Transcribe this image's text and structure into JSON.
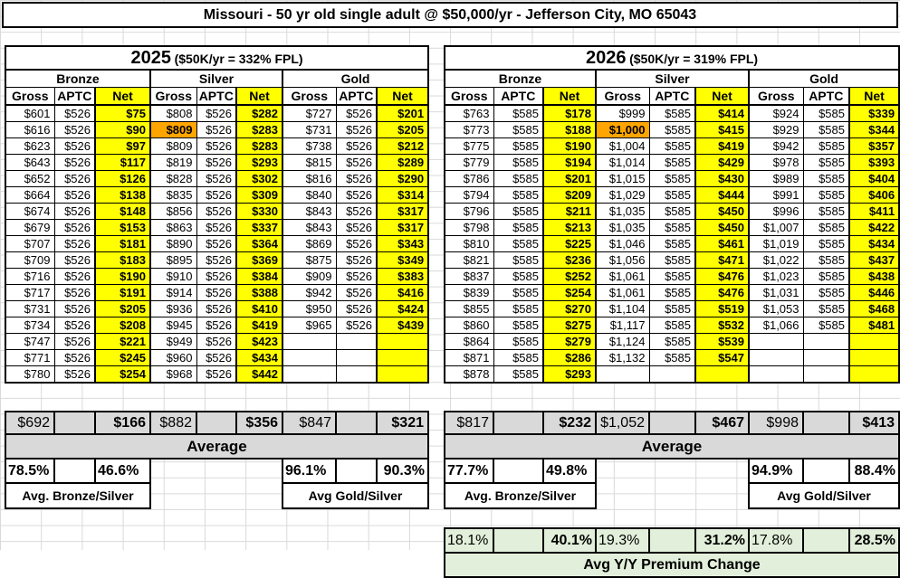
{
  "title": "Missouri - 50 yr old single adult @ $50,000/yr - Jefferson City, MO 65043",
  "column_headers": [
    "Gross",
    "APTC",
    "Net"
  ],
  "tier_headers": [
    "Bronze",
    "Silver",
    "Gold"
  ],
  "summary": {
    "average_label": "Average",
    "bronze_silver_label": "Avg. Bronze/Silver",
    "gold_silver_label": "Avg Gold/Silver"
  },
  "yoy_label": "Avg Y/Y Premium Change",
  "colors": {
    "net_column_highlight": "#FFFF00",
    "benchmark_highlight": "#FFA500",
    "summary_background": "#D9D9D9",
    "yoy_background": "#E2EFDA"
  },
  "years": [
    {
      "year": "2025",
      "fpl_note": "($50K/yr = 332% FPL)",
      "rows": [
        [
          "$601",
          "$526",
          "$75",
          "$808",
          "$526",
          "$282",
          "$727",
          "$526",
          "$201"
        ],
        [
          "$616",
          "$526",
          "$90",
          "$809",
          "$526",
          "$283",
          "$731",
          "$526",
          "$205"
        ],
        [
          "$623",
          "$526",
          "$97",
          "$809",
          "$526",
          "$283",
          "$738",
          "$526",
          "$212"
        ],
        [
          "$643",
          "$526",
          "$117",
          "$819",
          "$526",
          "$293",
          "$815",
          "$526",
          "$289"
        ],
        [
          "$652",
          "$526",
          "$126",
          "$828",
          "$526",
          "$302",
          "$816",
          "$526",
          "$290"
        ],
        [
          "$664",
          "$526",
          "$138",
          "$835",
          "$526",
          "$309",
          "$840",
          "$526",
          "$314"
        ],
        [
          "$674",
          "$526",
          "$148",
          "$856",
          "$526",
          "$330",
          "$843",
          "$526",
          "$317"
        ],
        [
          "$679",
          "$526",
          "$153",
          "$863",
          "$526",
          "$337",
          "$843",
          "$526",
          "$317"
        ],
        [
          "$707",
          "$526",
          "$181",
          "$890",
          "$526",
          "$364",
          "$869",
          "$526",
          "$343"
        ],
        [
          "$709",
          "$526",
          "$183",
          "$895",
          "$526",
          "$369",
          "$875",
          "$526",
          "$349"
        ],
        [
          "$716",
          "$526",
          "$190",
          "$910",
          "$526",
          "$384",
          "$909",
          "$526",
          "$383"
        ],
        [
          "$717",
          "$526",
          "$191",
          "$914",
          "$526",
          "$388",
          "$942",
          "$526",
          "$416"
        ],
        [
          "$731",
          "$526",
          "$205",
          "$936",
          "$526",
          "$410",
          "$950",
          "$526",
          "$424"
        ],
        [
          "$734",
          "$526",
          "$208",
          "$945",
          "$526",
          "$419",
          "$965",
          "$526",
          "$439"
        ],
        [
          "$747",
          "$526",
          "$221",
          "$949",
          "$526",
          "$423",
          "",
          "",
          ""
        ],
        [
          "$771",
          "$526",
          "$245",
          "$960",
          "$526",
          "$434",
          "",
          "",
          ""
        ],
        [
          "$780",
          "$526",
          "$254",
          "$968",
          "$526",
          "$442",
          "",
          "",
          ""
        ]
      ],
      "benchmark_cell": {
        "row": 1,
        "col": 3
      },
      "averages": [
        "$692",
        "",
        "$166",
        "$882",
        "",
        "$356",
        "$847",
        "",
        "$321"
      ],
      "percents": [
        "78.5%",
        "",
        "46.6%",
        "",
        "",
        "",
        "96.1%",
        "",
        "90.3%"
      ]
    },
    {
      "year": "2026",
      "fpl_note": "($50K/yr = 319% FPL)",
      "rows": [
        [
          "$763",
          "$585",
          "$178",
          "$999",
          "$585",
          "$414",
          "$924",
          "$585",
          "$339"
        ],
        [
          "$773",
          "$585",
          "$188",
          "$1,000",
          "$585",
          "$415",
          "$929",
          "$585",
          "$344"
        ],
        [
          "$775",
          "$585",
          "$190",
          "$1,004",
          "$585",
          "$419",
          "$942",
          "$585",
          "$357"
        ],
        [
          "$779",
          "$585",
          "$194",
          "$1,014",
          "$585",
          "$429",
          "$978",
          "$585",
          "$393"
        ],
        [
          "$786",
          "$585",
          "$201",
          "$1,015",
          "$585",
          "$430",
          "$989",
          "$585",
          "$404"
        ],
        [
          "$794",
          "$585",
          "$209",
          "$1,029",
          "$585",
          "$444",
          "$991",
          "$585",
          "$406"
        ],
        [
          "$796",
          "$585",
          "$211",
          "$1,035",
          "$585",
          "$450",
          "$996",
          "$585",
          "$411"
        ],
        [
          "$798",
          "$585",
          "$213",
          "$1,035",
          "$585",
          "$450",
          "$1,007",
          "$585",
          "$422"
        ],
        [
          "$810",
          "$585",
          "$225",
          "$1,046",
          "$585",
          "$461",
          "$1,019",
          "$585",
          "$434"
        ],
        [
          "$821",
          "$585",
          "$236",
          "$1,056",
          "$585",
          "$471",
          "$1,022",
          "$585",
          "$437"
        ],
        [
          "$837",
          "$585",
          "$252",
          "$1,061",
          "$585",
          "$476",
          "$1,023",
          "$585",
          "$438"
        ],
        [
          "$839",
          "$585",
          "$254",
          "$1,061",
          "$585",
          "$476",
          "$1,031",
          "$585",
          "$446"
        ],
        [
          "$855",
          "$585",
          "$270",
          "$1,104",
          "$585",
          "$519",
          "$1,053",
          "$585",
          "$468"
        ],
        [
          "$860",
          "$585",
          "$275",
          "$1,117",
          "$585",
          "$532",
          "$1,066",
          "$585",
          "$481"
        ],
        [
          "$864",
          "$585",
          "$279",
          "$1,124",
          "$585",
          "$539",
          "",
          "",
          ""
        ],
        [
          "$871",
          "$585",
          "$286",
          "$1,132",
          "$585",
          "$547",
          "",
          "",
          ""
        ],
        [
          "$878",
          "$585",
          "$293",
          "",
          "",
          "",
          "",
          "",
          ""
        ]
      ],
      "benchmark_cell": {
        "row": 1,
        "col": 3
      },
      "averages": [
        "$817",
        "",
        "$232",
        "$1,052",
        "",
        "$467",
        "$998",
        "",
        "$413"
      ],
      "percents": [
        "77.7%",
        "",
        "49.8%",
        "",
        "",
        "",
        "94.9%",
        "",
        "88.4%"
      ],
      "yoy": [
        "18.1%",
        "",
        "40.1%",
        "19.3%",
        "",
        "31.2%",
        "17.8%",
        "",
        "28.5%"
      ]
    }
  ]
}
